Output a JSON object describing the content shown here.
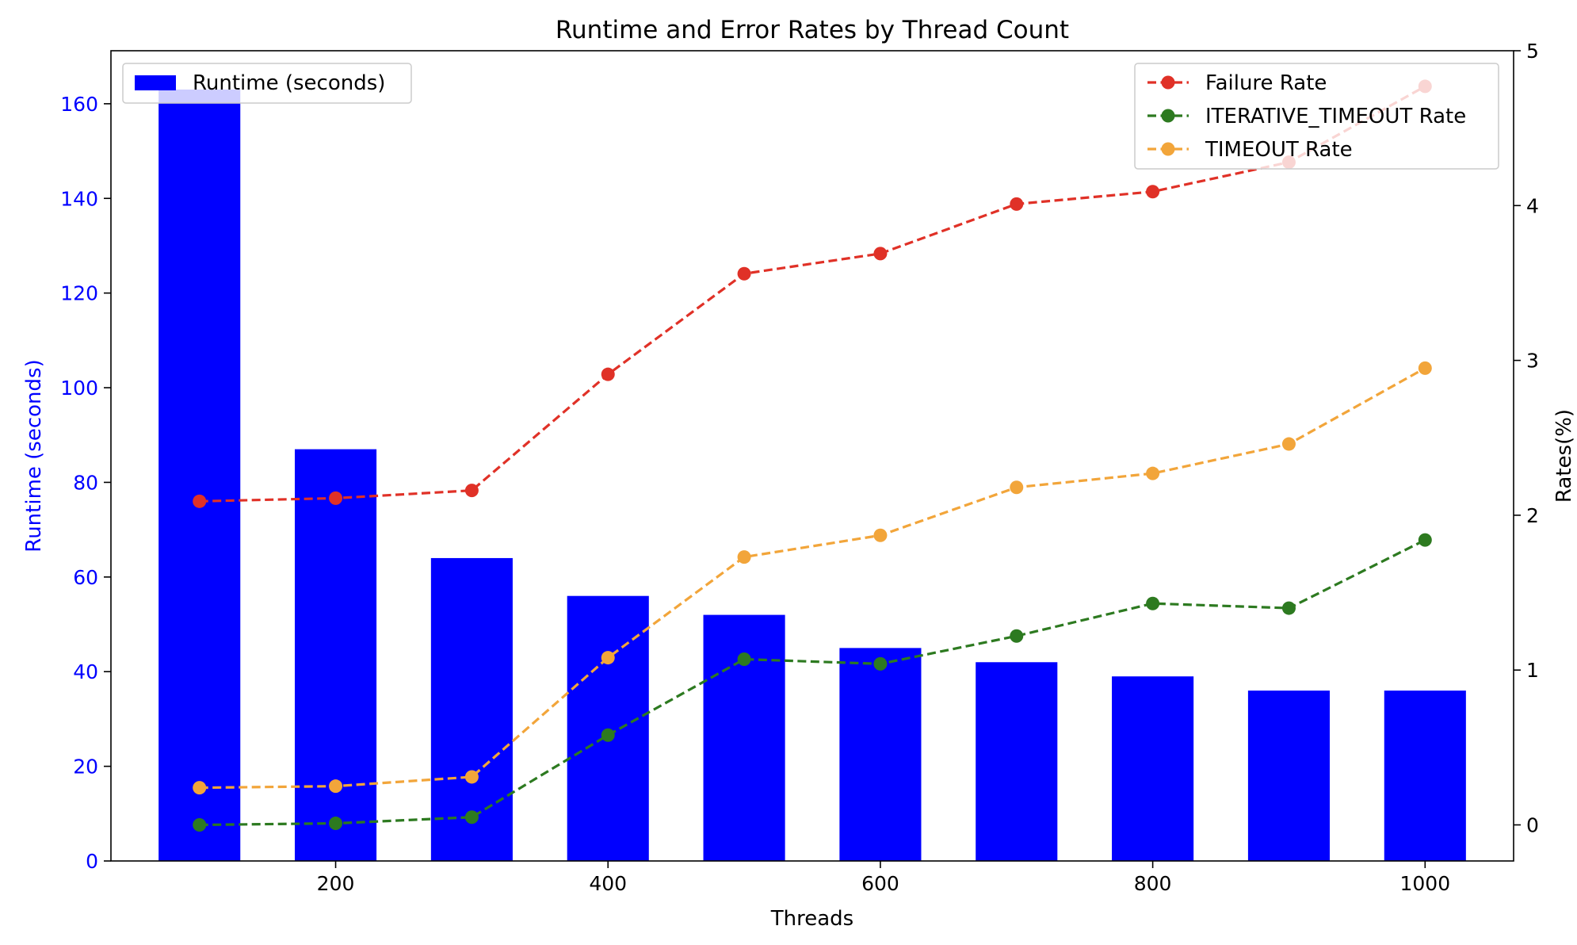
{
  "chart_data": {
    "type": "bar",
    "title": "Runtime and Error Rates by Thread Count",
    "xlabel": "Threads",
    "ylabel_left": "Runtime (seconds)",
    "ylabel_right": "Rates(%)",
    "x": [
      100,
      200,
      300,
      400,
      500,
      600,
      700,
      800,
      900,
      1000
    ],
    "x_ticks": [
      "200",
      "400",
      "600",
      "800",
      "1000"
    ],
    "x_tick_values": [
      200,
      400,
      600,
      800,
      1000
    ],
    "xlim": [
      35,
      1065
    ],
    "ylim_left": [
      0,
      171.2
    ],
    "ylim_right": [
      -0.233,
      5.0
    ],
    "left_ticks": [
      0,
      20,
      40,
      60,
      80,
      100,
      120,
      140,
      160
    ],
    "right_ticks": [
      0,
      1,
      2,
      3,
      4,
      5
    ],
    "grid": false,
    "bar_series": {
      "name": "Runtime (seconds)",
      "values": [
        163,
        87,
        64,
        56,
        52,
        45,
        42,
        39,
        36,
        36
      ],
      "color": "#0000ff",
      "axis": "left"
    },
    "line_series": [
      {
        "name": "Failure Rate",
        "values": [
          2.09,
          2.11,
          2.16,
          2.91,
          3.56,
          3.69,
          4.01,
          4.09,
          4.28,
          4.77
        ],
        "color": "#e03127",
        "axis": "right"
      },
      {
        "name": "ITERATIVE_TIMEOUT Rate",
        "values": [
          0.0,
          0.01,
          0.05,
          0.58,
          1.07,
          1.04,
          1.22,
          1.43,
          1.4,
          1.84
        ],
        "color": "#2d7a20",
        "axis": "right"
      },
      {
        "name": "TIMEOUT Rate",
        "values": [
          0.24,
          0.25,
          0.31,
          1.08,
          1.73,
          1.87,
          2.18,
          2.27,
          2.46,
          2.95
        ],
        "color": "#f2a53a",
        "axis": "right"
      }
    ],
    "legend_left_position": "top-left",
    "legend_right_position": "top-right",
    "left_axis_color": "#0000ff"
  }
}
